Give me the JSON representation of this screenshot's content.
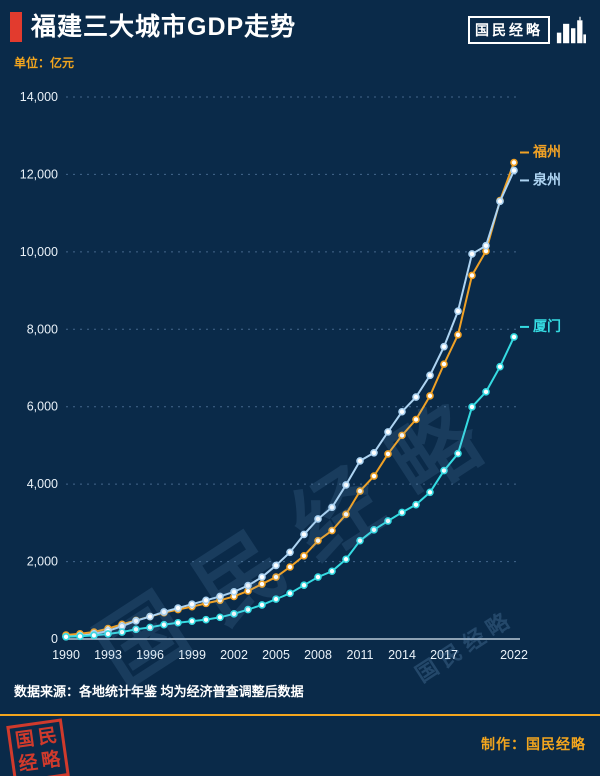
{
  "page": {
    "bg_color": "#0a2a49",
    "accent_red": "#e23b2e",
    "accent_orange": "#f2a51e"
  },
  "header": {
    "title": "福建三大城市GDP走势",
    "logo_text": "国民经略",
    "unit_label": "单位：亿元"
  },
  "watermark": {
    "text_large": "国民经略",
    "text_small": "国民经略"
  },
  "chart_data": {
    "type": "line",
    "title": "福建三大城市GDP走势",
    "ylabel": "亿元",
    "ylim": [
      0,
      14000
    ],
    "ytick_interval": 2000,
    "yticks": [
      "0",
      "2,000",
      "4,000",
      "6,000",
      "8,000",
      "10,000",
      "12,000",
      "14,000"
    ],
    "xticks": [
      "1990",
      "1993",
      "1996",
      "1999",
      "2002",
      "2005",
      "2008",
      "2011",
      "2014",
      "2017",
      "2022"
    ],
    "grid": "dotted-horizontal",
    "legend_position": "right-of-line-end",
    "x": [
      1990,
      1991,
      1992,
      1993,
      1994,
      1995,
      1996,
      1997,
      1998,
      1999,
      2000,
      2001,
      2002,
      2003,
      2004,
      2005,
      2006,
      2007,
      2008,
      2009,
      2010,
      2011,
      2012,
      2013,
      2014,
      2015,
      2016,
      2017,
      2018,
      2019,
      2020,
      2021,
      2022
    ],
    "series": [
      {
        "name": "福州",
        "color": "#f0a125",
        "values": [
          102,
          135,
          180,
          270,
          380,
          480,
          580,
          680,
          760,
          835,
          920,
          1000,
          1100,
          1240,
          1420,
          1600,
          1860,
          2150,
          2540,
          2800,
          3220,
          3820,
          4210,
          4780,
          5260,
          5670,
          6280,
          7100,
          7857,
          9392,
          10020,
          11324,
          12308
        ]
      },
      {
        "name": "泉州",
        "color": "#aed4f2",
        "values": [
          60,
          85,
          130,
          210,
          330,
          470,
          580,
          700,
          800,
          900,
          1000,
          1100,
          1220,
          1380,
          1600,
          1900,
          2240,
          2700,
          3100,
          3400,
          3980,
          4600,
          4810,
          5350,
          5870,
          6250,
          6810,
          7550,
          8468,
          9946,
          10159,
          11304,
          12103
        ]
      },
      {
        "name": "厦门",
        "color": "#35dbe2",
        "values": [
          57,
          70,
          95,
          130,
          180,
          250,
          300,
          370,
          420,
          460,
          500,
          560,
          650,
          760,
          880,
          1030,
          1180,
          1390,
          1600,
          1750,
          2060,
          2540,
          2820,
          3050,
          3270,
          3470,
          3790,
          4350,
          4790,
          5995,
          6384,
          7034,
          7803
        ]
      }
    ]
  },
  "footer": {
    "source_note": "数据来源：各地统计年鉴  均为经济普查调整后数据",
    "credit": "制作：国民经略",
    "seal_rows": [
      "国民",
      "经略"
    ]
  }
}
